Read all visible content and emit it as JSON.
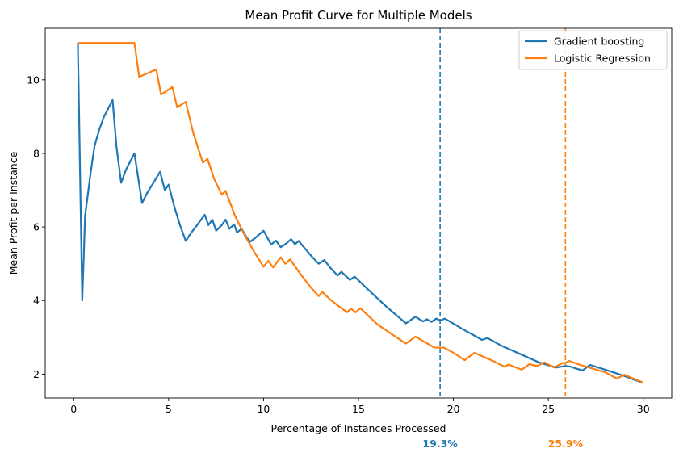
{
  "chart_data": {
    "type": "line",
    "title": "Mean Profit Curve for Multiple Models",
    "xlabel": "Percentage of Instances Processed",
    "ylabel": "Mean Profit per Instance",
    "xlim": [
      -1.5,
      31.5
    ],
    "ylim": [
      1.35,
      11.4
    ],
    "xticks": [
      0,
      5,
      10,
      15,
      20,
      25,
      30
    ],
    "yticks": [
      2,
      4,
      6,
      8,
      10
    ],
    "grid": false,
    "legend_position": "top-right",
    "series": [
      {
        "name": "Gradient boosting",
        "color": "#1f77b4",
        "points": [
          [
            0.22,
            11.0
          ],
          [
            0.45,
            4.0
          ],
          [
            0.6,
            6.3
          ],
          [
            0.9,
            7.5
          ],
          [
            1.1,
            8.2
          ],
          [
            1.35,
            8.65
          ],
          [
            1.6,
            9.0
          ],
          [
            1.85,
            9.25
          ],
          [
            2.05,
            9.45
          ],
          [
            2.25,
            8.2
          ],
          [
            2.5,
            7.2
          ],
          [
            2.75,
            7.55
          ],
          [
            3.0,
            7.8
          ],
          [
            3.2,
            8.0
          ],
          [
            3.6,
            6.65
          ],
          [
            3.9,
            6.95
          ],
          [
            4.2,
            7.2
          ],
          [
            4.55,
            7.5
          ],
          [
            4.8,
            7.0
          ],
          [
            5.0,
            7.15
          ],
          [
            5.3,
            6.55
          ],
          [
            5.6,
            6.05
          ],
          [
            5.9,
            5.62
          ],
          [
            6.2,
            5.85
          ],
          [
            6.5,
            6.05
          ],
          [
            6.9,
            6.33
          ],
          [
            7.1,
            6.05
          ],
          [
            7.3,
            6.2
          ],
          [
            7.5,
            5.9
          ],
          [
            7.8,
            6.05
          ],
          [
            8.0,
            6.2
          ],
          [
            8.2,
            5.95
          ],
          [
            8.45,
            6.07
          ],
          [
            8.6,
            5.85
          ],
          [
            8.85,
            5.95
          ],
          [
            9.1,
            5.72
          ],
          [
            9.3,
            5.6
          ],
          [
            9.6,
            5.72
          ],
          [
            10.0,
            5.9
          ],
          [
            10.4,
            5.52
          ],
          [
            10.65,
            5.63
          ],
          [
            10.9,
            5.45
          ],
          [
            11.2,
            5.55
          ],
          [
            11.45,
            5.67
          ],
          [
            11.65,
            5.53
          ],
          [
            11.85,
            5.62
          ],
          [
            12.5,
            5.22
          ],
          [
            12.9,
            5.0
          ],
          [
            13.2,
            5.1
          ],
          [
            13.5,
            4.9
          ],
          [
            13.9,
            4.68
          ],
          [
            14.1,
            4.78
          ],
          [
            14.55,
            4.56
          ],
          [
            14.8,
            4.65
          ],
          [
            15.5,
            4.3
          ],
          [
            16.5,
            3.82
          ],
          [
            17.5,
            3.38
          ],
          [
            18.0,
            3.56
          ],
          [
            18.4,
            3.43
          ],
          [
            18.6,
            3.49
          ],
          [
            18.85,
            3.42
          ],
          [
            19.1,
            3.51
          ],
          [
            19.3,
            3.45
          ],
          [
            19.55,
            3.51
          ],
          [
            20.5,
            3.22
          ],
          [
            21.2,
            3.02
          ],
          [
            21.5,
            2.93
          ],
          [
            21.8,
            2.98
          ],
          [
            22.5,
            2.78
          ],
          [
            23.5,
            2.55
          ],
          [
            24.5,
            2.32
          ],
          [
            25.4,
            2.18
          ],
          [
            25.9,
            2.22
          ],
          [
            26.2,
            2.2
          ],
          [
            26.4,
            2.16
          ],
          [
            26.8,
            2.1
          ],
          [
            27.2,
            2.25
          ],
          [
            28.0,
            2.12
          ],
          [
            29.0,
            1.95
          ],
          [
            30.0,
            1.76
          ]
        ],
        "threshold_x": 19.3,
        "threshold_label": "19.3%"
      },
      {
        "name": "Logistic Regression",
        "color": "#ff7f0e",
        "points": [
          [
            0.2,
            11.0
          ],
          [
            3.2,
            11.0
          ],
          [
            3.45,
            10.08
          ],
          [
            3.9,
            10.18
          ],
          [
            4.35,
            10.28
          ],
          [
            4.6,
            9.6
          ],
          [
            5.2,
            9.8
          ],
          [
            5.45,
            9.25
          ],
          [
            5.9,
            9.4
          ],
          [
            6.3,
            8.55
          ],
          [
            6.8,
            7.75
          ],
          [
            7.05,
            7.85
          ],
          [
            7.4,
            7.3
          ],
          [
            7.8,
            6.88
          ],
          [
            8.0,
            6.98
          ],
          [
            8.5,
            6.3
          ],
          [
            9.0,
            5.78
          ],
          [
            9.5,
            5.33
          ],
          [
            10.0,
            4.92
          ],
          [
            10.25,
            5.08
          ],
          [
            10.5,
            4.9
          ],
          [
            10.9,
            5.17
          ],
          [
            11.15,
            5.0
          ],
          [
            11.4,
            5.12
          ],
          [
            12.0,
            4.68
          ],
          [
            12.5,
            4.35
          ],
          [
            12.9,
            4.12
          ],
          [
            13.1,
            4.23
          ],
          [
            13.5,
            4.03
          ],
          [
            14.0,
            3.83
          ],
          [
            14.4,
            3.68
          ],
          [
            14.6,
            3.78
          ],
          [
            14.85,
            3.68
          ],
          [
            15.1,
            3.79
          ],
          [
            16.0,
            3.35
          ],
          [
            17.0,
            3.0
          ],
          [
            17.5,
            2.83
          ],
          [
            18.0,
            3.02
          ],
          [
            19.0,
            2.72
          ],
          [
            19.25,
            2.72
          ],
          [
            19.5,
            2.72
          ],
          [
            20.0,
            2.58
          ],
          [
            20.6,
            2.38
          ],
          [
            21.1,
            2.58
          ],
          [
            22.0,
            2.38
          ],
          [
            22.7,
            2.2
          ],
          [
            22.9,
            2.26
          ],
          [
            23.6,
            2.12
          ],
          [
            24.0,
            2.27
          ],
          [
            24.4,
            2.22
          ],
          [
            24.8,
            2.32
          ],
          [
            25.3,
            2.18
          ],
          [
            25.8,
            2.31
          ],
          [
            25.9,
            2.3
          ],
          [
            26.1,
            2.36
          ],
          [
            26.5,
            2.28
          ],
          [
            27.0,
            2.2
          ],
          [
            28.0,
            2.05
          ],
          [
            28.6,
            1.88
          ],
          [
            29.0,
            1.98
          ],
          [
            30.0,
            1.77
          ]
        ],
        "threshold_x": 25.9,
        "threshold_label": "25.9%"
      }
    ]
  }
}
